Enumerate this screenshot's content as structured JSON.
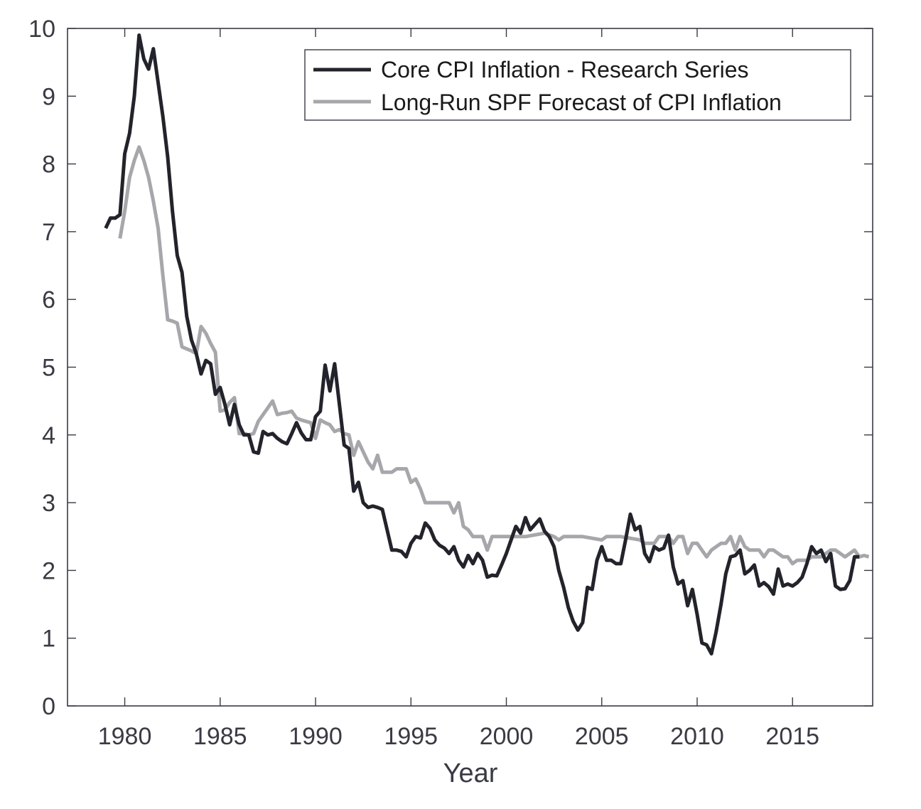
{
  "chart_data": {
    "type": "line",
    "title": "",
    "xlabel": "Year",
    "ylabel": "",
    "xlim": [
      1977,
      2019.2
    ],
    "ylim": [
      0,
      10
    ],
    "xticks": [
      1980,
      1985,
      1990,
      1995,
      2000,
      2005,
      2010,
      2015
    ],
    "yticks": [
      0,
      1,
      2,
      3,
      4,
      5,
      6,
      7,
      8,
      9,
      10
    ],
    "grid": false,
    "legend_position": "top-right",
    "series": [
      {
        "name": "Core CPI Inflation - Research Series",
        "color": "#23232b",
        "points": [
          [
            1979.0,
            7.05
          ],
          [
            1979.25,
            7.2
          ],
          [
            1979.5,
            7.2
          ],
          [
            1979.75,
            7.25
          ],
          [
            1980.0,
            8.15
          ],
          [
            1980.25,
            8.45
          ],
          [
            1980.5,
            9.0
          ],
          [
            1980.75,
            9.9
          ],
          [
            1981.0,
            9.55
          ],
          [
            1981.25,
            9.4
          ],
          [
            1981.5,
            9.7
          ],
          [
            1981.75,
            9.2
          ],
          [
            1982.0,
            8.7
          ],
          [
            1982.25,
            8.1
          ],
          [
            1982.5,
            7.3
          ],
          [
            1982.75,
            6.65
          ],
          [
            1983.0,
            6.4
          ],
          [
            1983.25,
            5.75
          ],
          [
            1983.5,
            5.4
          ],
          [
            1983.75,
            5.2
          ],
          [
            1984.0,
            4.9
          ],
          [
            1984.25,
            5.1
          ],
          [
            1984.5,
            5.05
          ],
          [
            1984.75,
            4.6
          ],
          [
            1985.0,
            4.7
          ],
          [
            1985.25,
            4.45
          ],
          [
            1985.5,
            4.15
          ],
          [
            1985.75,
            4.45
          ],
          [
            1986.0,
            4.15
          ],
          [
            1986.25,
            4.0
          ],
          [
            1986.5,
            4.0
          ],
          [
            1986.75,
            3.75
          ],
          [
            1987.0,
            3.73
          ],
          [
            1987.25,
            4.05
          ],
          [
            1987.5,
            4.0
          ],
          [
            1987.75,
            4.02
          ],
          [
            1988.0,
            3.95
          ],
          [
            1988.25,
            3.9
          ],
          [
            1988.5,
            3.87
          ],
          [
            1988.75,
            4.02
          ],
          [
            1989.0,
            4.18
          ],
          [
            1989.25,
            4.03
          ],
          [
            1989.5,
            3.93
          ],
          [
            1989.75,
            3.93
          ],
          [
            1990.0,
            4.27
          ],
          [
            1990.25,
            4.35
          ],
          [
            1990.5,
            5.03
          ],
          [
            1990.75,
            4.65
          ],
          [
            1991.0,
            5.05
          ],
          [
            1991.25,
            4.45
          ],
          [
            1991.5,
            3.85
          ],
          [
            1991.75,
            3.8
          ],
          [
            1992.0,
            3.17
          ],
          [
            1992.25,
            3.3
          ],
          [
            1992.5,
            3.0
          ],
          [
            1992.75,
            2.93
          ],
          [
            1993.0,
            2.95
          ],
          [
            1993.25,
            2.93
          ],
          [
            1993.5,
            2.9
          ],
          [
            1993.75,
            2.6
          ],
          [
            1994.0,
            2.3
          ],
          [
            1994.25,
            2.3
          ],
          [
            1994.5,
            2.28
          ],
          [
            1994.75,
            2.2
          ],
          [
            1995.0,
            2.4
          ],
          [
            1995.25,
            2.5
          ],
          [
            1995.5,
            2.48
          ],
          [
            1995.75,
            2.7
          ],
          [
            1996.0,
            2.62
          ],
          [
            1996.25,
            2.45
          ],
          [
            1996.5,
            2.37
          ],
          [
            1996.75,
            2.33
          ],
          [
            1997.0,
            2.25
          ],
          [
            1997.25,
            2.35
          ],
          [
            1997.5,
            2.15
          ],
          [
            1997.75,
            2.05
          ],
          [
            1998.0,
            2.22
          ],
          [
            1998.25,
            2.1
          ],
          [
            1998.5,
            2.25
          ],
          [
            1998.75,
            2.15
          ],
          [
            1999.0,
            1.9
          ],
          [
            1999.25,
            1.93
          ],
          [
            1999.5,
            1.92
          ],
          [
            1999.75,
            2.08
          ],
          [
            2000.0,
            2.25
          ],
          [
            2000.25,
            2.45
          ],
          [
            2000.5,
            2.65
          ],
          [
            2000.75,
            2.55
          ],
          [
            2001.0,
            2.78
          ],
          [
            2001.25,
            2.6
          ],
          [
            2001.5,
            2.68
          ],
          [
            2001.75,
            2.76
          ],
          [
            2002.0,
            2.58
          ],
          [
            2002.25,
            2.5
          ],
          [
            2002.5,
            2.35
          ],
          [
            2002.75,
            2.0
          ],
          [
            2003.0,
            1.75
          ],
          [
            2003.25,
            1.45
          ],
          [
            2003.5,
            1.25
          ],
          [
            2003.75,
            1.12
          ],
          [
            2004.0,
            1.23
          ],
          [
            2004.25,
            1.75
          ],
          [
            2004.5,
            1.72
          ],
          [
            2004.75,
            2.15
          ],
          [
            2005.0,
            2.35
          ],
          [
            2005.25,
            2.15
          ],
          [
            2005.5,
            2.15
          ],
          [
            2005.75,
            2.1
          ],
          [
            2006.0,
            2.1
          ],
          [
            2006.25,
            2.45
          ],
          [
            2006.5,
            2.83
          ],
          [
            2006.75,
            2.6
          ],
          [
            2007.0,
            2.65
          ],
          [
            2007.25,
            2.25
          ],
          [
            2007.5,
            2.13
          ],
          [
            2007.75,
            2.35
          ],
          [
            2008.0,
            2.3
          ],
          [
            2008.25,
            2.33
          ],
          [
            2008.5,
            2.52
          ],
          [
            2008.75,
            2.05
          ],
          [
            2009.0,
            1.8
          ],
          [
            2009.25,
            1.85
          ],
          [
            2009.5,
            1.48
          ],
          [
            2009.75,
            1.72
          ],
          [
            2010.0,
            1.35
          ],
          [
            2010.25,
            0.93
          ],
          [
            2010.5,
            0.9
          ],
          [
            2010.75,
            0.77
          ],
          [
            2011.0,
            1.1
          ],
          [
            2011.25,
            1.5
          ],
          [
            2011.5,
            1.95
          ],
          [
            2011.75,
            2.2
          ],
          [
            2012.0,
            2.22
          ],
          [
            2012.25,
            2.3
          ],
          [
            2012.5,
            1.95
          ],
          [
            2012.75,
            2.0
          ],
          [
            2013.0,
            2.08
          ],
          [
            2013.25,
            1.77
          ],
          [
            2013.5,
            1.82
          ],
          [
            2013.75,
            1.76
          ],
          [
            2014.0,
            1.65
          ],
          [
            2014.25,
            2.02
          ],
          [
            2014.5,
            1.77
          ],
          [
            2014.75,
            1.8
          ],
          [
            2015.0,
            1.77
          ],
          [
            2015.25,
            1.82
          ],
          [
            2015.5,
            1.9
          ],
          [
            2015.75,
            2.1
          ],
          [
            2016.0,
            2.35
          ],
          [
            2016.25,
            2.25
          ],
          [
            2016.5,
            2.3
          ],
          [
            2016.75,
            2.13
          ],
          [
            2017.0,
            2.25
          ],
          [
            2017.25,
            1.77
          ],
          [
            2017.5,
            1.72
          ],
          [
            2017.75,
            1.73
          ],
          [
            2018.0,
            1.85
          ],
          [
            2018.25,
            2.2
          ],
          [
            2018.5,
            2.2
          ]
        ]
      },
      {
        "name": "Long-Run SPF Forecast of CPI Inflation",
        "color": "#a7a7ab",
        "points": [
          [
            1979.75,
            6.9
          ],
          [
            1980.0,
            7.3
          ],
          [
            1980.25,
            7.8
          ],
          [
            1980.5,
            8.05
          ],
          [
            1980.75,
            8.25
          ],
          [
            1981.0,
            8.05
          ],
          [
            1981.25,
            7.8
          ],
          [
            1981.5,
            7.45
          ],
          [
            1981.75,
            7.05
          ],
          [
            1982.0,
            6.35
          ],
          [
            1982.25,
            5.7
          ],
          [
            1982.5,
            5.68
          ],
          [
            1982.75,
            5.65
          ],
          [
            1983.0,
            5.3
          ],
          [
            1983.25,
            5.27
          ],
          [
            1983.5,
            5.24
          ],
          [
            1983.75,
            5.2
          ],
          [
            1984.0,
            5.6
          ],
          [
            1984.25,
            5.5
          ],
          [
            1984.5,
            5.35
          ],
          [
            1984.75,
            5.22
          ],
          [
            1985.0,
            4.35
          ],
          [
            1985.25,
            4.37
          ],
          [
            1985.5,
            4.48
          ],
          [
            1985.75,
            4.55
          ],
          [
            1986.0,
            4.02
          ],
          [
            1986.25,
            4.02
          ],
          [
            1986.5,
            4.0
          ],
          [
            1986.75,
            4.02
          ],
          [
            1987.0,
            4.2
          ],
          [
            1987.25,
            4.3
          ],
          [
            1987.5,
            4.4
          ],
          [
            1987.75,
            4.5
          ],
          [
            1988.0,
            4.3
          ],
          [
            1988.25,
            4.32
          ],
          [
            1988.5,
            4.33
          ],
          [
            1988.75,
            4.35
          ],
          [
            1989.0,
            4.25
          ],
          [
            1989.25,
            4.22
          ],
          [
            1989.5,
            4.2
          ],
          [
            1989.75,
            4.18
          ],
          [
            1990.0,
            3.95
          ],
          [
            1990.25,
            4.22
          ],
          [
            1990.5,
            4.18
          ],
          [
            1990.75,
            4.15
          ],
          [
            1991.0,
            4.05
          ],
          [
            1991.25,
            4.08
          ],
          [
            1991.5,
            4.02
          ],
          [
            1991.75,
            4.0
          ],
          [
            1992.0,
            3.7
          ],
          [
            1992.25,
            3.9
          ],
          [
            1992.5,
            3.75
          ],
          [
            1992.75,
            3.6
          ],
          [
            1993.0,
            3.5
          ],
          [
            1993.25,
            3.7
          ],
          [
            1993.5,
            3.45
          ],
          [
            1993.75,
            3.45
          ],
          [
            1994.0,
            3.45
          ],
          [
            1994.25,
            3.5
          ],
          [
            1994.5,
            3.5
          ],
          [
            1994.75,
            3.5
          ],
          [
            1995.0,
            3.3
          ],
          [
            1995.25,
            3.35
          ],
          [
            1995.5,
            3.2
          ],
          [
            1995.75,
            3.0
          ],
          [
            1996.0,
            3.0
          ],
          [
            1996.25,
            3.0
          ],
          [
            1996.5,
            3.0
          ],
          [
            1996.75,
            3.0
          ],
          [
            1997.0,
            3.0
          ],
          [
            1997.25,
            2.85
          ],
          [
            1997.5,
            3.0
          ],
          [
            1997.75,
            2.65
          ],
          [
            1998.0,
            2.6
          ],
          [
            1998.25,
            2.5
          ],
          [
            1998.5,
            2.5
          ],
          [
            1998.75,
            2.5
          ],
          [
            1999.0,
            2.3
          ],
          [
            1999.25,
            2.5
          ],
          [
            1999.5,
            2.5
          ],
          [
            2000.0,
            2.5
          ],
          [
            2001.0,
            2.5
          ],
          [
            2002.0,
            2.55
          ],
          [
            2002.5,
            2.5
          ],
          [
            2002.75,
            2.45
          ],
          [
            2003.0,
            2.5
          ],
          [
            2004.0,
            2.5
          ],
          [
            2005.0,
            2.45
          ],
          [
            2005.25,
            2.5
          ],
          [
            2006.0,
            2.5
          ],
          [
            2007.0,
            2.45
          ],
          [
            2007.25,
            2.4
          ],
          [
            2007.75,
            2.4
          ],
          [
            2008.0,
            2.5
          ],
          [
            2008.5,
            2.5
          ],
          [
            2008.75,
            2.4
          ],
          [
            2009.0,
            2.5
          ],
          [
            2009.25,
            2.5
          ],
          [
            2009.5,
            2.25
          ],
          [
            2009.75,
            2.4
          ],
          [
            2010.0,
            2.4
          ],
          [
            2010.25,
            2.3
          ],
          [
            2010.5,
            2.2
          ],
          [
            2010.75,
            2.3
          ],
          [
            2011.0,
            2.35
          ],
          [
            2011.25,
            2.4
          ],
          [
            2011.5,
            2.4
          ],
          [
            2011.75,
            2.5
          ],
          [
            2012.0,
            2.3
          ],
          [
            2012.25,
            2.5
          ],
          [
            2012.5,
            2.35
          ],
          [
            2012.75,
            2.3
          ],
          [
            2013.0,
            2.3
          ],
          [
            2013.25,
            2.3
          ],
          [
            2013.5,
            2.2
          ],
          [
            2013.75,
            2.3
          ],
          [
            2014.0,
            2.3
          ],
          [
            2014.25,
            2.25
          ],
          [
            2014.5,
            2.2
          ],
          [
            2014.75,
            2.2
          ],
          [
            2015.0,
            2.1
          ],
          [
            2015.25,
            2.15
          ],
          [
            2015.5,
            2.15
          ],
          [
            2015.75,
            2.15
          ],
          [
            2016.0,
            2.2
          ],
          [
            2016.25,
            2.2
          ],
          [
            2016.5,
            2.2
          ],
          [
            2016.75,
            2.25
          ],
          [
            2017.0,
            2.3
          ],
          [
            2017.25,
            2.3
          ],
          [
            2017.5,
            2.25
          ],
          [
            2017.75,
            2.2
          ],
          [
            2018.0,
            2.25
          ],
          [
            2018.25,
            2.3
          ],
          [
            2018.5,
            2.2
          ],
          [
            2018.75,
            2.22
          ],
          [
            2019.0,
            2.2
          ]
        ]
      }
    ]
  }
}
